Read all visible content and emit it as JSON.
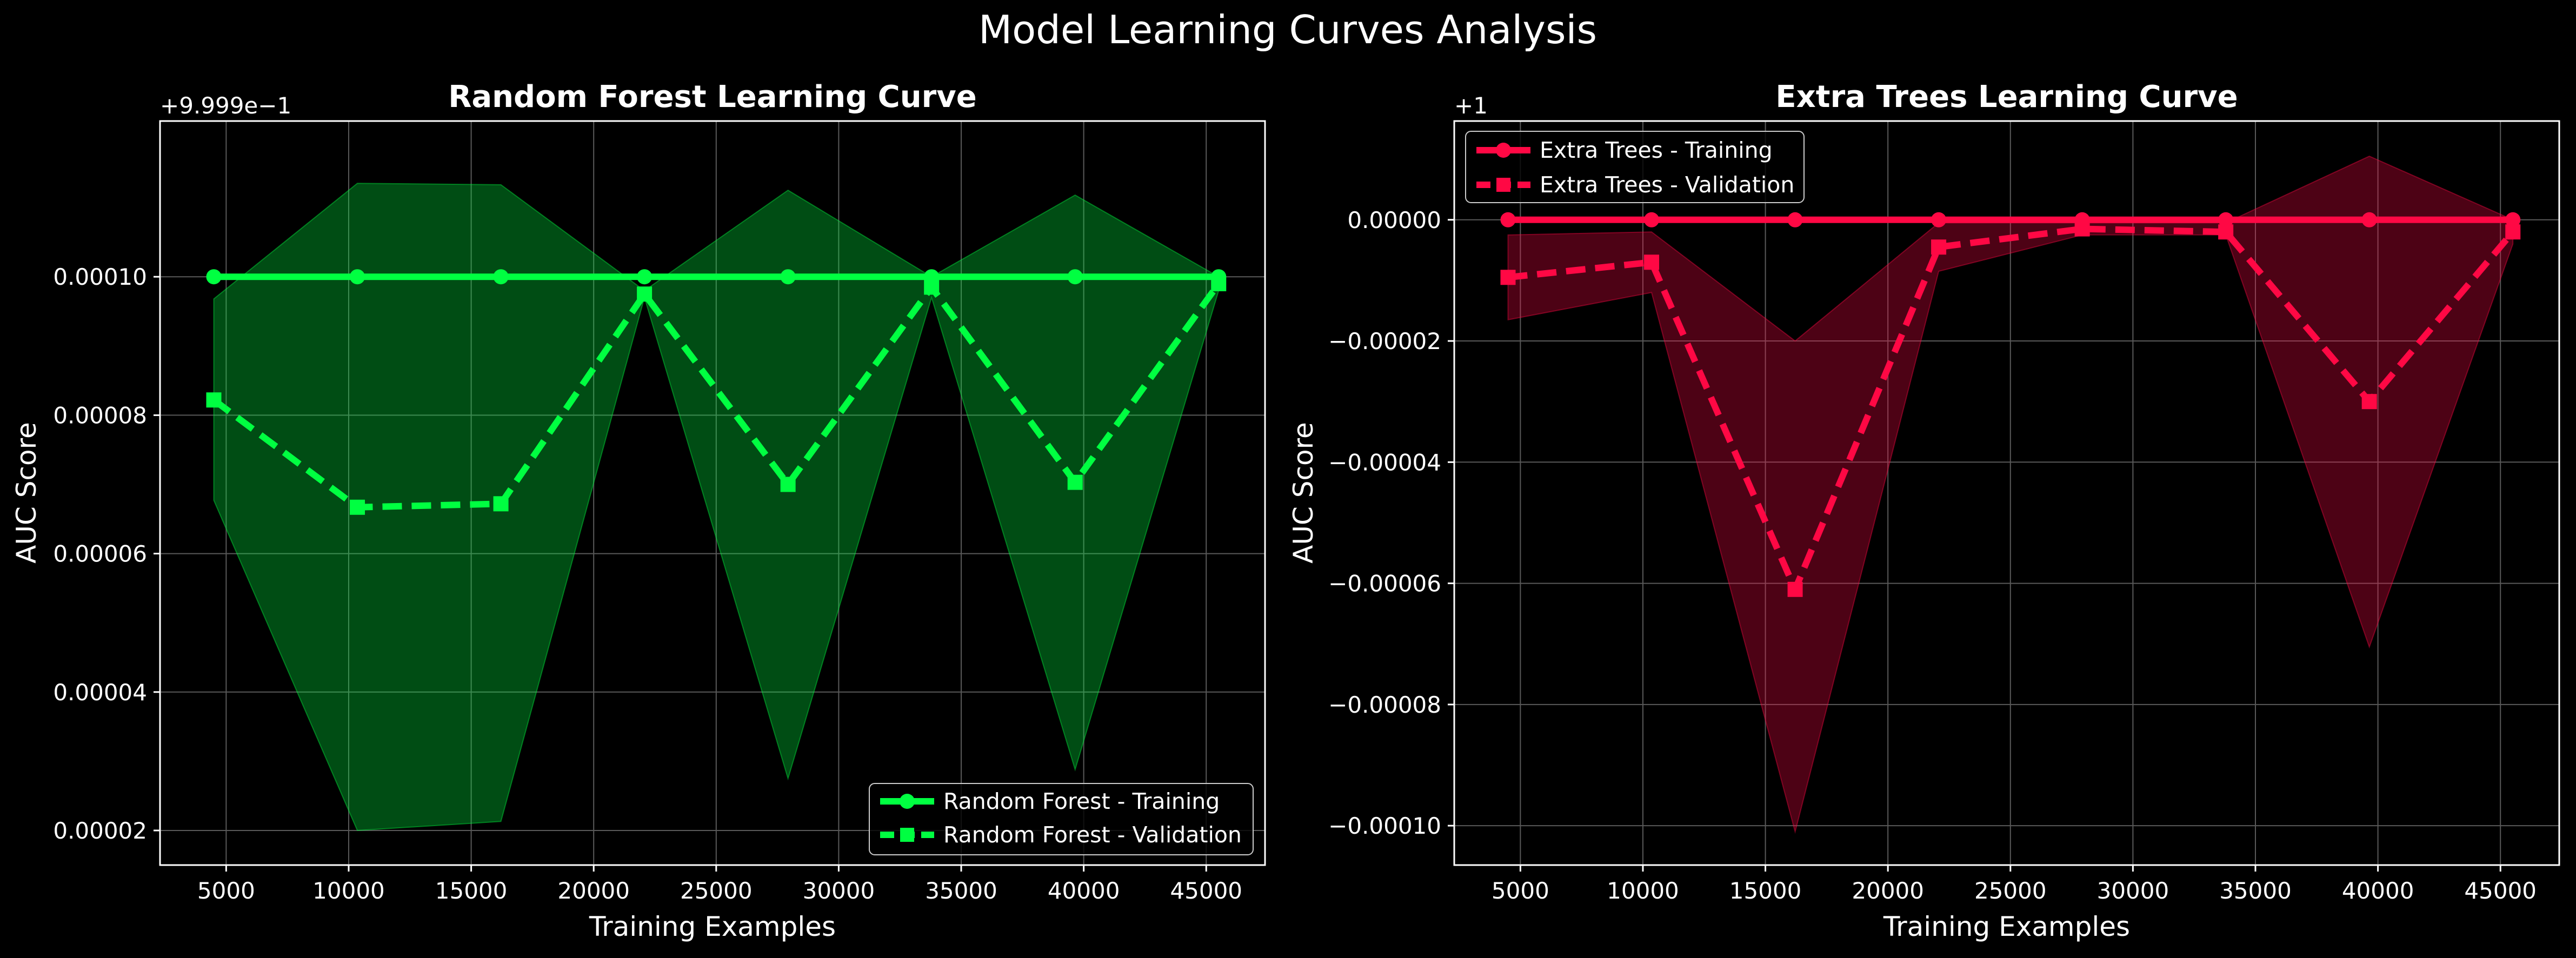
{
  "figure_title": "Model Learning Curves Analysis",
  "colors": {
    "background": "#000000",
    "grid": "#595959",
    "spine": "#ffffff",
    "rf": "#00ff41",
    "rf_band": "#00ff41",
    "et": "#ff0844",
    "et_band": "#ff0844"
  },
  "chart_data": [
    {
      "type": "line",
      "title": "Random Forest Learning Curve",
      "xlabel": "Training Examples",
      "ylabel": "AUC Score",
      "offset_text": "+9.999e−1",
      "xlim": [
        2300,
        47400
      ],
      "ylim": [
        1.5e-05,
        0.0001225
      ],
      "xticks": [
        5000,
        10000,
        15000,
        20000,
        25000,
        30000,
        35000,
        40000,
        45000
      ],
      "yticks": [
        2e-05,
        4e-05,
        6e-05,
        8e-05,
        0.0001
      ],
      "ytick_labels": [
        "0.00002",
        "0.00004",
        "0.00006",
        "0.00008",
        "0.00010"
      ],
      "grid": true,
      "legend_location": "lower-right",
      "x": [
        4495,
        10354,
        16213,
        22072,
        27931,
        33790,
        39649,
        45508
      ],
      "series": [
        {
          "name": "Random Forest - Training",
          "style": "solid",
          "marker": "circle",
          "values": [
            0.0001,
            0.0001,
            0.0001,
            0.0001,
            0.0001,
            0.0001,
            0.0001,
            0.0001
          ]
        },
        {
          "name": "Random Forest - Validation",
          "style": "dashed",
          "marker": "square",
          "values": [
            8.22e-05,
            6.67e-05,
            6.72e-05,
            9.75e-05,
            7e-05,
            9.85e-05,
            7.03e-05,
            9.9e-05
          ],
          "band_low": [
            6.77e-05,
            2e-05,
            2.13e-05,
            9.7e-05,
            2.75e-05,
            9.7e-05,
            2.88e-05,
            9.8e-05
          ],
          "band_high": [
            9.68e-05,
            0.0001135,
            0.0001133,
            9.8e-05,
            0.0001125,
            0.0001,
            0.0001118,
            0.0001
          ]
        }
      ]
    },
    {
      "type": "line",
      "title": "Extra Trees Learning Curve",
      "xlabel": "Training Examples",
      "ylabel": "AUC Score",
      "offset_text": "+1",
      "xlim": [
        2300,
        47400
      ],
      "ylim": [
        -0.0001065,
        1.63e-05
      ],
      "xticks": [
        5000,
        10000,
        15000,
        20000,
        25000,
        30000,
        35000,
        40000,
        45000
      ],
      "yticks": [
        -0.0001,
        -8e-05,
        -6e-05,
        -4e-05,
        -2e-05,
        0.0
      ],
      "ytick_labels": [
        "−0.00010",
        "−0.00008",
        "−0.00006",
        "−0.00004",
        "−0.00002",
        "0.00000"
      ],
      "grid": true,
      "legend_location": "upper-left",
      "x": [
        4495,
        10354,
        16213,
        22072,
        27931,
        33790,
        39649,
        45508
      ],
      "series": [
        {
          "name": "Extra Trees - Training",
          "style": "solid",
          "marker": "circle",
          "values": [
            0,
            0,
            0,
            0,
            0,
            0,
            0,
            0
          ]
        },
        {
          "name": "Extra Trees - Validation",
          "style": "dashed",
          "marker": "square",
          "values": [
            -9.5e-06,
            -7e-06,
            -6.1e-05,
            -4.5e-06,
            -1.5e-06,
            -2e-06,
            -3e-05,
            -2e-06
          ],
          "band_low": [
            -1.65e-05,
            -1.2e-05,
            -0.000101,
            -8.5e-06,
            -2.5e-06,
            -2.5e-06,
            -7.05e-05,
            -4e-06
          ],
          "band_high": [
            -2.5e-06,
            -2e-06,
            -2e-05,
            -5e-07,
            -5e-07,
            -5e-07,
            1.05e-05,
            0.0
          ]
        }
      ]
    }
  ]
}
